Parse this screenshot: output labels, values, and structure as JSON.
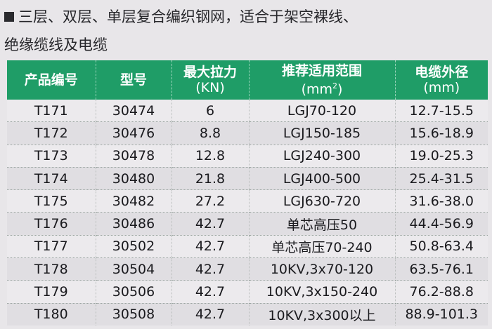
{
  "intro": {
    "line1": "三层、双层、单层复合编织钢网，适合于架空裸线、",
    "line2": "绝缘缆线及电缆"
  },
  "table": {
    "headers": {
      "code": "产品编号",
      "model": "型号",
      "max_tension": "最大拉力",
      "max_tension_unit": "(KN)",
      "range": "推荐适用范围",
      "range_unit": "(mm",
      "range_unit_sup": "2",
      "range_unit_close": ")",
      "diameter": "电缆外径",
      "diameter_unit": "(mm)"
    },
    "rows": [
      {
        "code": "T171",
        "model": "30474",
        "tension": "6",
        "range": "LGJ70-120",
        "diameter": "12.7-15.5"
      },
      {
        "code": "T172",
        "model": "30476",
        "tension": "8.8",
        "range": "LGJ150-185",
        "diameter": "15.6-18.9"
      },
      {
        "code": "T173",
        "model": "30478",
        "tension": "12.8",
        "range": "LGJ240-300",
        "diameter": "19.0-25.3"
      },
      {
        "code": "T174",
        "model": "30480",
        "tension": "21.8",
        "range": "LGJ400-500",
        "diameter": "25.4-31.5"
      },
      {
        "code": "T175",
        "model": "30482",
        "tension": "27.2",
        "range": "LGJ630-720",
        "diameter": "31.6-38.0"
      },
      {
        "code": "T176",
        "model": "30486",
        "tension": "42.7",
        "range": "单芯高压50",
        "diameter": "44.4-56.9"
      },
      {
        "code": "T177",
        "model": "30502",
        "tension": "42.7",
        "range": "单芯高压70-240",
        "diameter": "50.8-63.4"
      },
      {
        "code": "T178",
        "model": "30504",
        "tension": "42.7",
        "range": "10KV,3x70-120",
        "diameter": "63.5-76.1"
      },
      {
        "code": "T179",
        "model": "30506",
        "tension": "42.7",
        "range": "10KV,3x150-240",
        "diameter": "76.2-88.8"
      },
      {
        "code": "T180",
        "model": "30508",
        "tension": "42.7",
        "range": "10KV,3x300以上",
        "diameter": "88.9-101.3"
      }
    ]
  },
  "colors": {
    "header_bg": "#1f9d67",
    "page_bg": "#e8e6e9"
  }
}
